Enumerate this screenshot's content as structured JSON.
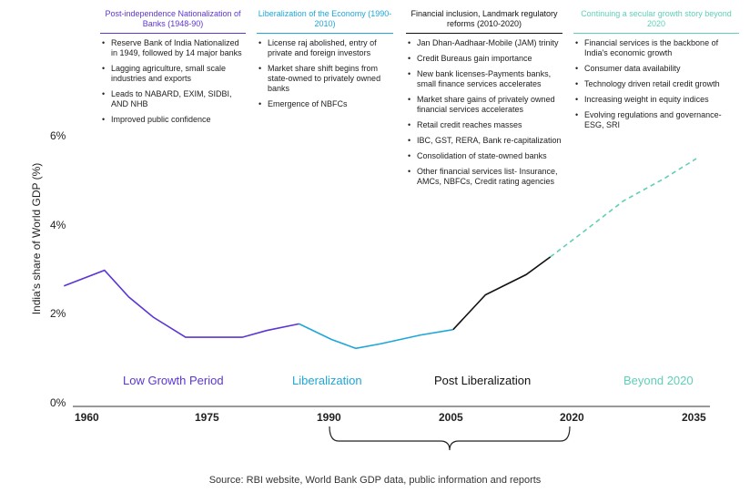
{
  "chart_data": {
    "type": "line",
    "title": "",
    "ylabel": "India's share of World GDP (%)",
    "xlabel": "",
    "ylim": [
      0,
      7
    ],
    "xlim": [
      1958,
      2037
    ],
    "y_ticks": [
      "0%",
      "2%",
      "4%",
      "6%"
    ],
    "x_ticks": [
      "1960",
      "1975",
      "1990",
      "2005",
      "2020",
      "2035"
    ],
    "grid": false,
    "series": [
      {
        "name": "Low Growth Period",
        "color": "#5b35d5",
        "x": [
          1957,
          1962,
          1965,
          1968,
          1972,
          1975,
          1979,
          1982,
          1986
        ],
        "y": [
          2.7,
          3.05,
          2.45,
          2.0,
          1.55,
          1.55,
          1.55,
          1.7,
          1.85
        ]
      },
      {
        "name": "Liberalization",
        "color": "#1ea7d8",
        "x": [
          1986,
          1990,
          1993,
          1996,
          2001,
          2005
        ],
        "y": [
          1.85,
          1.5,
          1.3,
          1.4,
          1.6,
          1.72
        ]
      },
      {
        "name": "Post Liberalization",
        "color": "#111111",
        "x": [
          2005,
          2009,
          2014,
          2017
        ],
        "y": [
          1.72,
          2.5,
          2.95,
          3.35
        ]
      },
      {
        "name": "Beyond 2020",
        "color": "#5fcfb6",
        "dashed": true,
        "x": [
          2017,
          2021,
          2026,
          2031,
          2035
        ],
        "y": [
          3.35,
          3.9,
          4.6,
          5.1,
          5.55
        ]
      }
    ],
    "periods": [
      "Low Growth Period",
      "Liberalization",
      "Post Liberalization",
      "Beyond 2020"
    ]
  },
  "phases": [
    {
      "title": "Post-independence Nationalization of Banks (1948-90)",
      "color": "#5b35d5",
      "bullets": [
        "Reserve Bank of India Nationalized in 1949, followed by 14 major banks",
        "Lagging agriculture, small scale industries and exports",
        "Leads to NABARD, EXIM, SIDBI, AND NHB",
        "Improved public confidence"
      ]
    },
    {
      "title": "Liberalization of the Economy (1990-2010)",
      "color": "#1ea7d8",
      "bullets": [
        "License raj abolished, entry of private and foreign investors",
        "Market share shift begins from state-owned to privately owned banks",
        "Emergence of NBFCs"
      ]
    },
    {
      "title": "Financial inclusion, Landmark regulatory reforms (2010-2020)",
      "color": "#111111",
      "bullets": [
        "Jan Dhan-Aadhaar-Mobile (JAM) trinity",
        "Credit Bureaus gain importance",
        "New bank licenses-Payments banks, small finance services accelerates",
        "Market share gains of privately owned financial services accelerates",
        "Retail credit reaches masses",
        "IBC, GST, RERA, Bank re-capitalization",
        "Consolidation of state-owned banks",
        "Other financial services list- Insurance, AMCs, NBFCs, Credit rating agencies"
      ]
    },
    {
      "title": "Continuing a secular growth story beyond 2020",
      "color": "#5fcfb6",
      "bullets": [
        "Financial services is the backbone of India's economic growth",
        "Consumer data availability",
        "Technology driven retail credit growth",
        "Increasing weight in equity indices",
        "Evolving regulations and governance- ESG, SRI"
      ]
    }
  ],
  "source": "Source: RBI website, World Bank GDP data, public information and reports",
  "colors": {
    "purple": "#5b35d5",
    "blue": "#1ea7d8",
    "black": "#111111",
    "teal": "#5fcfb6"
  }
}
